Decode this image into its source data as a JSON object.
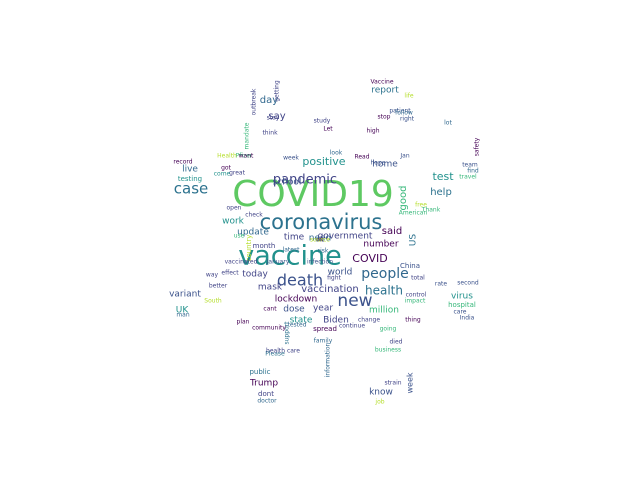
{
  "wordcloud": {
    "words": [
      {
        "text": "COVID19",
        "color": "#5ec962"
      },
      {
        "text": "coronavirus",
        "color": "#2c728e"
      },
      {
        "text": "vaccine",
        "color": "#21918c"
      },
      {
        "text": "new",
        "color": "#3b528b"
      },
      {
        "text": "death",
        "color": "#3b528b"
      },
      {
        "text": "people",
        "color": "#31688e"
      },
      {
        "text": "pandemic",
        "color": "#414487"
      },
      {
        "text": "case",
        "color": "#2c728e"
      },
      {
        "text": "health",
        "color": "#2c728e"
      },
      {
        "text": "positive",
        "color": "#21918c"
      },
      {
        "text": "COVID",
        "color": "#440154"
      },
      {
        "text": "test",
        "color": "#21918c"
      },
      {
        "text": "vaccination",
        "color": "#414487"
      },
      {
        "text": "said",
        "color": "#440154"
      },
      {
        "text": "home",
        "color": "#3b528b"
      },
      {
        "text": "help",
        "color": "#2c728e"
      },
      {
        "text": "good",
        "color": "#35b779"
      },
      {
        "text": "day",
        "color": "#31688e"
      },
      {
        "text": "say",
        "color": "#414487"
      },
      {
        "text": "report",
        "color": "#2c728e"
      },
      {
        "text": "school",
        "color": "#3b528b"
      },
      {
        "text": "live",
        "color": "#31688e"
      },
      {
        "text": "update",
        "color": "#31688e"
      },
      {
        "text": "time",
        "color": "#414487"
      },
      {
        "text": "need",
        "color": "#31688e"
      },
      {
        "text": "government",
        "color": "#414487"
      },
      {
        "text": "number",
        "color": "#440154"
      },
      {
        "text": "US",
        "color": "#2c728e"
      },
      {
        "text": "world",
        "color": "#3b528b"
      },
      {
        "text": "work",
        "color": "#21918c"
      },
      {
        "text": "today",
        "color": "#414487"
      },
      {
        "text": "mask",
        "color": "#414487"
      },
      {
        "text": "year",
        "color": "#414487"
      },
      {
        "text": "million",
        "color": "#35b779"
      },
      {
        "text": "variant",
        "color": "#3b528b"
      },
      {
        "text": "UK",
        "color": "#21918c"
      },
      {
        "text": "lockdown",
        "color": "#440154"
      },
      {
        "text": "dose",
        "color": "#3b528b"
      },
      {
        "text": "state",
        "color": "#21918c"
      },
      {
        "text": "Biden",
        "color": "#414487"
      },
      {
        "text": "virus",
        "color": "#21918c"
      },
      {
        "text": "hospital",
        "color": "#35b779"
      },
      {
        "text": "week",
        "color": "#3b528b"
      },
      {
        "text": "know",
        "color": "#3b528b"
      },
      {
        "text": "Trump",
        "color": "#440154"
      },
      {
        "text": "dont",
        "color": "#414487"
      },
      {
        "text": "public",
        "color": "#2c728e"
      },
      {
        "text": "testing",
        "color": "#21918c"
      },
      {
        "text": "China",
        "color": "#3b528b"
      },
      {
        "text": "spread",
        "color": "#440154"
      },
      {
        "text": "care",
        "color": "#3b528b"
      },
      {
        "text": "month",
        "color": "#414487"
      },
      {
        "text": "country",
        "color": "#b5de2b"
      },
      {
        "text": "patient",
        "color": "#3b528b"
      },
      {
        "text": "stop",
        "color": "#440154"
      },
      {
        "text": "thing",
        "color": "#440154"
      },
      {
        "text": "second",
        "color": "#3b528b"
      },
      {
        "text": "rate",
        "color": "#3b528b"
      },
      {
        "text": "India",
        "color": "#3b528b"
      },
      {
        "text": "high",
        "color": "#440154"
      },
      {
        "text": "think",
        "color": "#414487"
      },
      {
        "text": "got",
        "color": "#440154"
      },
      {
        "text": "check",
        "color": "#414487"
      },
      {
        "text": "great",
        "color": "#414487"
      },
      {
        "text": "open",
        "color": "#414487"
      },
      {
        "text": "effect",
        "color": "#414487"
      },
      {
        "text": "better",
        "color": "#414487"
      },
      {
        "text": "latest",
        "color": "#31688e"
      },
      {
        "text": "risk",
        "color": "#31688e"
      },
      {
        "text": "January",
        "color": "#3b528b"
      },
      {
        "text": "infection",
        "color": "#3b528b"
      },
      {
        "text": "going",
        "color": "#35b779"
      },
      {
        "text": "impact",
        "color": "#35b779"
      },
      {
        "text": "business",
        "color": "#35b779"
      },
      {
        "text": "died",
        "color": "#414487"
      },
      {
        "text": "strain",
        "color": "#414487"
      },
      {
        "text": "job",
        "color": "#b5de2b"
      },
      {
        "text": "doctor",
        "color": "#31688e"
      },
      {
        "text": "support",
        "color": "#2c728e"
      },
      {
        "text": "Please",
        "color": "#2c728e"
      },
      {
        "text": "information",
        "color": "#31688e"
      },
      {
        "text": "continue",
        "color": "#414487"
      },
      {
        "text": "tested",
        "color": "#31688e"
      },
      {
        "text": "total",
        "color": "#414487"
      },
      {
        "text": "American",
        "color": "#35b779"
      },
      {
        "text": "Read",
        "color": "#440154"
      },
      {
        "text": "hope",
        "color": "#3b528b"
      },
      {
        "text": "Jan",
        "color": "#3b528b"
      },
      {
        "text": "find",
        "color": "#31688e"
      },
      {
        "text": "travel",
        "color": "#35b779"
      },
      {
        "text": "Thank",
        "color": "#35b779"
      },
      {
        "text": "Let",
        "color": "#440154"
      },
      {
        "text": "study",
        "color": "#414487"
      },
      {
        "text": "stay",
        "color": "#414487"
      },
      {
        "text": "life",
        "color": "#b5de2b"
      },
      {
        "text": "right",
        "color": "#3b528b"
      },
      {
        "text": "follow",
        "color": "#31688e"
      },
      {
        "text": "Vaccine",
        "color": "#440154"
      },
      {
        "text": "outbreak",
        "color": "#414487"
      },
      {
        "text": "getting",
        "color": "#414487"
      },
      {
        "text": "team",
        "color": "#3b528b"
      },
      {
        "text": "safety",
        "color": "#440154"
      },
      {
        "text": "record",
        "color": "#440154"
      },
      {
        "text": "Pfizer",
        "color": "#35b779"
      },
      {
        "text": "week",
        "color": "#3b528b"
      },
      {
        "text": "look",
        "color": "#31688e"
      },
      {
        "text": "want",
        "color": "#440154"
      },
      {
        "text": "Health",
        "color": "#b5de2b"
      },
      {
        "text": "free",
        "color": "#b5de2b"
      },
      {
        "text": "come",
        "color": "#21918c"
      },
      {
        "text": "use",
        "color": "#35b779"
      },
      {
        "text": "way",
        "color": "#414487"
      },
      {
        "text": "fight",
        "color": "#414487"
      },
      {
        "text": "family",
        "color": "#31688e"
      },
      {
        "text": "vaccinated",
        "color": "#414487"
      },
      {
        "text": "control",
        "color": "#414487"
      },
      {
        "text": "man",
        "color": "#31688e"
      },
      {
        "text": "change",
        "color": "#414487"
      },
      {
        "text": "mandate",
        "color": "#35b779"
      },
      {
        "text": "South",
        "color": "#b5de2b"
      },
      {
        "text": "plan",
        "color": "#440154"
      },
      {
        "text": "community",
        "color": "#440154"
      },
      {
        "text": "health care",
        "color": "#414487"
      },
      {
        "text": "cant",
        "color": "#440154"
      },
      {
        "text": "lot",
        "color": "#31688e"
      },
      {
        "text": "die",
        "color": "#31688e"
      },
      {
        "text": "ok",
        "color": "#440154"
      },
      {
        "text": "source",
        "color": "#b5de2b"
      }
    ]
  }
}
